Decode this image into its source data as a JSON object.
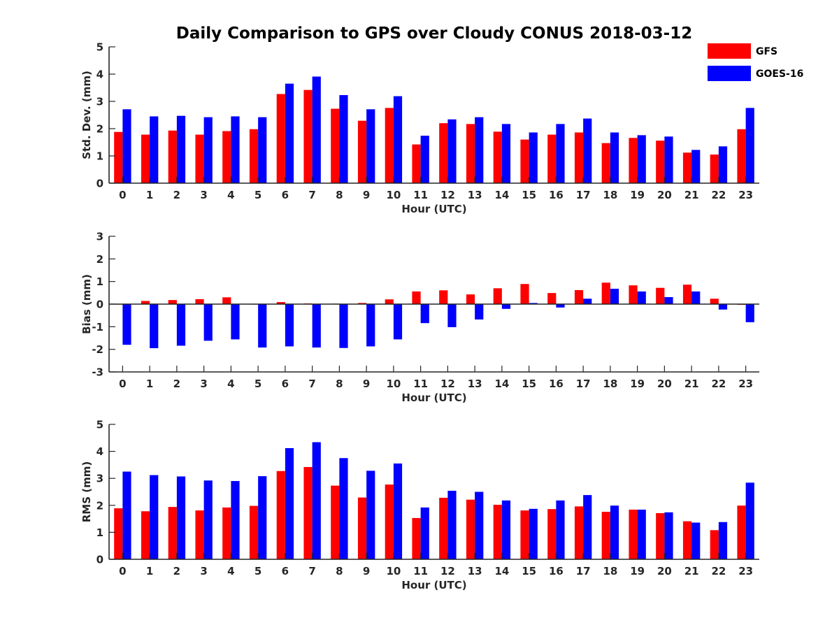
{
  "figure": {
    "title": "Daily Comparison to GPS over Cloudy CONUS 2018-03-12"
  },
  "legend": {
    "placement": "top-right",
    "entries": [
      {
        "name": "GFS",
        "color": "#ff0000"
      },
      {
        "name": "GOES-16",
        "color": "#0000ff"
      }
    ]
  },
  "chart_data": [
    {
      "type": "bar",
      "panel": "top",
      "xlabel": "Hour (UTC)",
      "ylabel": "Std. Dev. (mm)",
      "ylim": [
        0,
        5
      ],
      "yticks": [
        0,
        1,
        2,
        3,
        4,
        5
      ],
      "grid": false,
      "categories": [
        "0",
        "1",
        "2",
        "3",
        "4",
        "5",
        "6",
        "7",
        "8",
        "9",
        "10",
        "11",
        "12",
        "13",
        "14",
        "15",
        "16",
        "17",
        "18",
        "19",
        "20",
        "21",
        "22",
        "23"
      ],
      "series": [
        {
          "name": "GFS",
          "color": "#ff0000",
          "values": [
            1.88,
            1.78,
            1.93,
            1.78,
            1.91,
            1.98,
            3.27,
            3.42,
            2.73,
            2.29,
            2.76,
            1.42,
            2.2,
            2.17,
            1.89,
            1.6,
            1.78,
            1.86,
            1.47,
            1.66,
            1.56,
            1.12,
            1.05,
            1.98
          ]
        },
        {
          "name": "GOES-16",
          "color": "#0000ff",
          "values": [
            2.71,
            2.45,
            2.47,
            2.42,
            2.45,
            2.42,
            3.65,
            3.91,
            3.23,
            2.71,
            3.19,
            1.74,
            2.34,
            2.42,
            2.17,
            1.86,
            2.17,
            2.37,
            1.86,
            1.76,
            1.71,
            1.22,
            1.35,
            2.76
          ]
        }
      ]
    },
    {
      "type": "bar",
      "panel": "middle",
      "xlabel": "Hour (UTC)",
      "ylabel": "Bias (mm)",
      "ylim": [
        -3,
        3
      ],
      "yticks": [
        -3,
        -2,
        -1,
        0,
        1,
        2,
        3
      ],
      "grid": false,
      "zero_line": true,
      "categories": [
        "0",
        "1",
        "2",
        "3",
        "4",
        "5",
        "6",
        "7",
        "8",
        "9",
        "10",
        "11",
        "12",
        "13",
        "14",
        "15",
        "16",
        "17",
        "18",
        "19",
        "20",
        "21",
        "22",
        "23"
      ],
      "series": [
        {
          "name": "GFS",
          "color": "#ff0000",
          "values": [
            -0.02,
            0.14,
            0.18,
            0.22,
            0.3,
            -0.02,
            0.09,
            0.03,
            0.02,
            0.05,
            0.21,
            0.56,
            0.61,
            0.43,
            0.7,
            0.89,
            0.49,
            0.62,
            0.95,
            0.83,
            0.72,
            0.86,
            0.24,
            -0.03
          ]
        },
        {
          "name": "GOES-16",
          "color": "#0000ff",
          "values": [
            -1.8,
            -1.95,
            -1.84,
            -1.62,
            -1.56,
            -1.92,
            -1.87,
            -1.92,
            -1.94,
            -1.87,
            -1.56,
            -0.84,
            -1.02,
            -0.68,
            -0.21,
            0.05,
            -0.15,
            0.24,
            0.68,
            0.56,
            0.31,
            0.56,
            -0.24,
            -0.8
          ]
        }
      ]
    },
    {
      "type": "bar",
      "panel": "bottom",
      "xlabel": "Hour (UTC)",
      "ylabel": "RMS (mm)",
      "ylim": [
        0,
        5
      ],
      "yticks": [
        0,
        1,
        2,
        3,
        4,
        5
      ],
      "grid": false,
      "categories": [
        "0",
        "1",
        "2",
        "3",
        "4",
        "5",
        "6",
        "7",
        "8",
        "9",
        "10",
        "11",
        "12",
        "13",
        "14",
        "15",
        "16",
        "17",
        "18",
        "19",
        "20",
        "21",
        "22",
        "23"
      ],
      "series": [
        {
          "name": "GFS",
          "color": "#ff0000",
          "values": [
            1.89,
            1.78,
            1.94,
            1.81,
            1.92,
            1.98,
            3.27,
            3.42,
            2.73,
            2.29,
            2.77,
            1.53,
            2.28,
            2.21,
            2.02,
            1.81,
            1.86,
            1.96,
            1.76,
            1.84,
            1.71,
            1.41,
            1.08,
            1.99
          ]
        },
        {
          "name": "GOES-16",
          "color": "#0000ff",
          "values": [
            3.25,
            3.12,
            3.07,
            2.92,
            2.9,
            3.08,
            4.12,
            4.34,
            3.75,
            3.28,
            3.55,
            1.92,
            2.54,
            2.5,
            2.18,
            1.87,
            2.18,
            2.38,
            1.99,
            1.84,
            1.74,
            1.36,
            1.38,
            2.84
          ]
        }
      ]
    }
  ]
}
